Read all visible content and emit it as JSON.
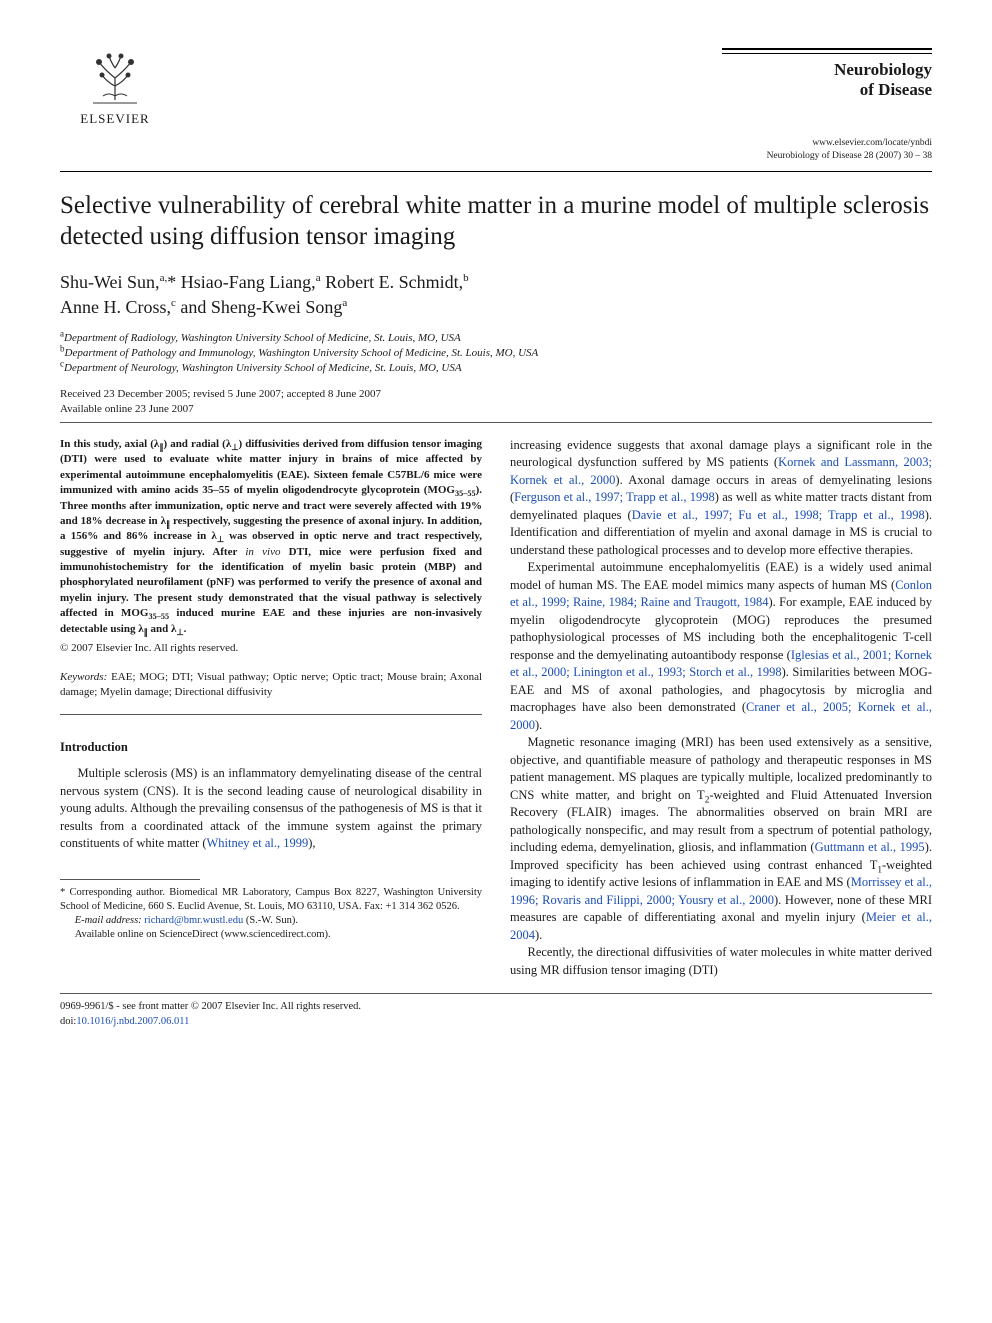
{
  "publisher": {
    "name": "ELSEVIER"
  },
  "journal": {
    "name_line1": "Neurobiology",
    "name_line2": "of Disease",
    "url": "www.elsevier.com/locate/ynbdi",
    "citation": "Neurobiology of Disease 28 (2007) 30 – 38"
  },
  "title": "Selective vulnerability of cerebral white matter in a murine model of multiple sclerosis detected using diffusion tensor imaging",
  "authors_html": "Shu-Wei Sun,<sup>a,</sup>* Hsiao-Fang Liang,<sup>a</sup> Robert E. Schmidt,<sup>b</sup><br>Anne H. Cross,<sup>c</sup> and Sheng-Kwei Song<sup>a</sup>",
  "affiliations": [
    "<sup>a</sup>Department of Radiology, Washington University School of Medicine, St. Louis, MO, USA",
    "<sup>b</sup>Department of Pathology and Immunology, Washington University School of Medicine, St. Louis, MO, USA",
    "<sup>c</sup>Department of Neurology, Washington University School of Medicine, St. Louis, MO, USA"
  ],
  "dates": {
    "received": "Received 23 December 2005; revised 5 June 2007; accepted 8 June 2007",
    "online": "Available online 23 June 2007"
  },
  "abstract_html": "In this study, axial (λ<sub>∥</sub>) and radial (λ<sub>⊥</sub>) diffusivities derived from diffusion tensor imaging (DTI) were used to evaluate white matter injury in brains of mice affected by experimental autoimmune encephalomyelitis (EAE). Sixteen female C57BL/6 mice were immunized with amino acids 35–55 of myelin oligodendrocyte glycoprotein (MOG<sub>35–55</sub>). Three months after immunization, optic nerve and tract were severely affected with 19% and 18% decrease in λ<sub>∥</sub> respectively, suggesting the presence of axonal injury. In addition, a 156% and 86% increase in λ<sub>⊥</sub> was observed in optic nerve and tract respectively, suggestive of myelin injury. After <span class=\"normal\" style=\"font-style:italic\">in vivo</span> DTI, mice were perfusion fixed and immunohistochemistry for the identification of myelin basic protein (MBP) and phosphorylated neurofilament (pNF) was performed to verify the presence of axonal and myelin injury. The present study demonstrated that the visual pathway is selectively affected in MOG<sub>35–55</sub> induced murine EAE and these injuries are non-invasively detectable using λ<sub>∥</sub> and λ<sub>⊥</sub>.",
  "copyright": "© 2007 Elsevier Inc. All rights reserved.",
  "keywords": {
    "label": "Keywords:",
    "text": "EAE; MOG; DTI; Visual pathway; Optic nerve; Optic tract; Mouse brain; Axonal damage; Myelin damage; Directional diffusivity"
  },
  "sections": {
    "introduction": {
      "heading": "Introduction",
      "p1_html": "Multiple sclerosis (MS) is an inflammatory demyelinating disease of the central nervous system (CNS). It is the second leading cause of neurological disability in young adults. Although the prevailing consensus of the pathogenesis of MS is that it results from a coordinated attack of the immune system against the primary constituents of white matter (<span class=\"ref-link\">Whitney et al., 1999</span>),",
      "p1b_html": "increasing evidence suggests that axonal damage plays a significant role in the neurological dysfunction suffered by MS patients (<span class=\"ref-link\">Kornek and Lassmann, 2003; Kornek et al., 2000</span>). Axonal damage occurs in areas of demyelinating lesions (<span class=\"ref-link\">Ferguson et al., 1997; Trapp et al., 1998</span>) as well as white matter tracts distant from demyelinated plaques (<span class=\"ref-link\">Davie et al., 1997; Fu et al., 1998; Trapp et al., 1998</span>). Identification and differentiation of myelin and axonal damage in MS is crucial to understand these pathological processes and to develop more effective therapies.",
      "p2_html": "Experimental autoimmune encephalomyelitis (EAE) is a widely used animal model of human MS. The EAE model mimics many aspects of human MS (<span class=\"ref-link\">Conlon et al., 1999; Raine, 1984; Raine and Traugott, 1984</span>). For example, EAE induced by myelin oligodendrocyte glycoprotein (MOG) reproduces the presumed pathophysiological processes of MS including both the encephalitogenic T-cell response and the demyelinating autoantibody response (<span class=\"ref-link\">Iglesias et al., 2001; Kornek et al., 2000; Linington et al., 1993; Storch et al., 1998</span>). Similarities between MOG-EAE and MS of axonal pathologies, and phagocytosis by microglia and macrophages have also been demonstrated (<span class=\"ref-link\">Craner et al., 2005; Kornek et al., 2000</span>).",
      "p3_html": "Magnetic resonance imaging (MRI) has been used extensively as a sensitive, objective, and quantifiable measure of pathology and therapeutic responses in MS patient management. MS plaques are typically multiple, localized predominantly to CNS white matter, and bright on T<sub>2</sub>-weighted and Fluid Attenuated Inversion Recovery (FLAIR) images. The abnormalities observed on brain MRI are pathologically nonspecific, and may result from a spectrum of potential pathology, including edema, demyelination, gliosis, and inflammation (<span class=\"ref-link\">Guttmann et al., 1995</span>). Improved specificity has been achieved using contrast enhanced T<sub>1</sub>-weighted imaging to identify active lesions of inflammation in EAE and MS (<span class=\"ref-link\">Morrissey et al., 1996; Rovaris and Filippi, 2000; Yousry et al., 2000</span>). However, none of these MRI measures are capable of differentiating axonal and myelin injury (<span class=\"ref-link\">Meier et al., 2004</span>).",
      "p4_html": "Recently, the directional diffusivities of water molecules in white matter derived using MR diffusion tensor imaging (DTI)"
    }
  },
  "footnotes": {
    "corr": "* Corresponding author. Biomedical MR Laboratory, Campus Box 8227, Washington University School of Medicine, 660 S. Euclid Avenue, St. Louis, MO 63110, USA. Fax: +1 314 362 0526.",
    "email_label": "E-mail address:",
    "email": "richard@bmr.wustl.edu",
    "email_tail": "(S.-W. Sun).",
    "avail": "Available online on ScienceDirect (www.sciencedirect.com)."
  },
  "footer": {
    "line1": "0969-9961/$ - see front matter © 2007 Elsevier Inc. All rights reserved.",
    "doi_label": "doi:",
    "doi": "10.1016/j.nbd.2007.06.011"
  },
  "colors": {
    "link": "#1a4db3",
    "text": "#1a1a1a",
    "rule": "#555555"
  }
}
